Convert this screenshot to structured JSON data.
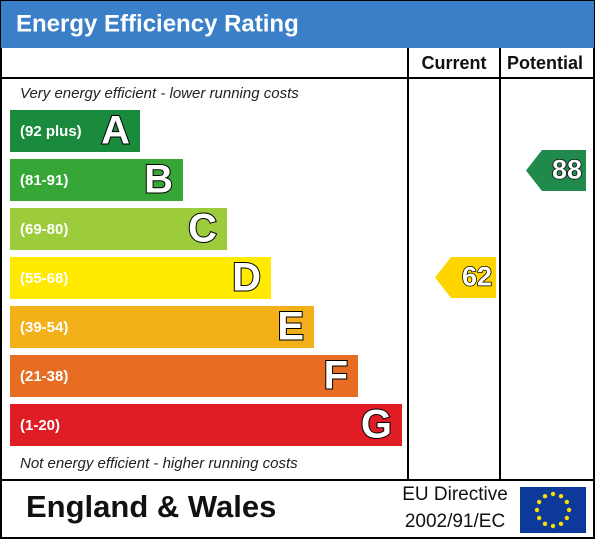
{
  "header": {
    "title": "Energy Efficiency Rating"
  },
  "columns": [
    "Current",
    "Potential"
  ],
  "top_note": "Very energy efficient - lower running costs",
  "bottom_note": "Not energy efficient - higher running costs",
  "bands": [
    {
      "range": "(92 plus)",
      "letter": "A",
      "color": "#1a8a3c"
    },
    {
      "range": "(81-91)",
      "letter": "B",
      "color": "#36a737"
    },
    {
      "range": "(69-80)",
      "letter": "C",
      "color": "#9ccb3b"
    },
    {
      "range": "(55-68)",
      "letter": "D",
      "color": "#ffea00"
    },
    {
      "range": "(39-54)",
      "letter": "E",
      "color": "#f4b019"
    },
    {
      "range": "(21-38)",
      "letter": "F",
      "color": "#e66d22"
    },
    {
      "range": "(1-20)",
      "letter": "G",
      "color": "#e01d24"
    }
  ],
  "current": {
    "rating": "62",
    "color": "#ffd500"
  },
  "potential": {
    "rating": "88",
    "color": "#1f8a4c"
  },
  "footer": {
    "region": "England & Wales",
    "directive": [
      "EU Directive",
      "2002/91/EC"
    ]
  }
}
